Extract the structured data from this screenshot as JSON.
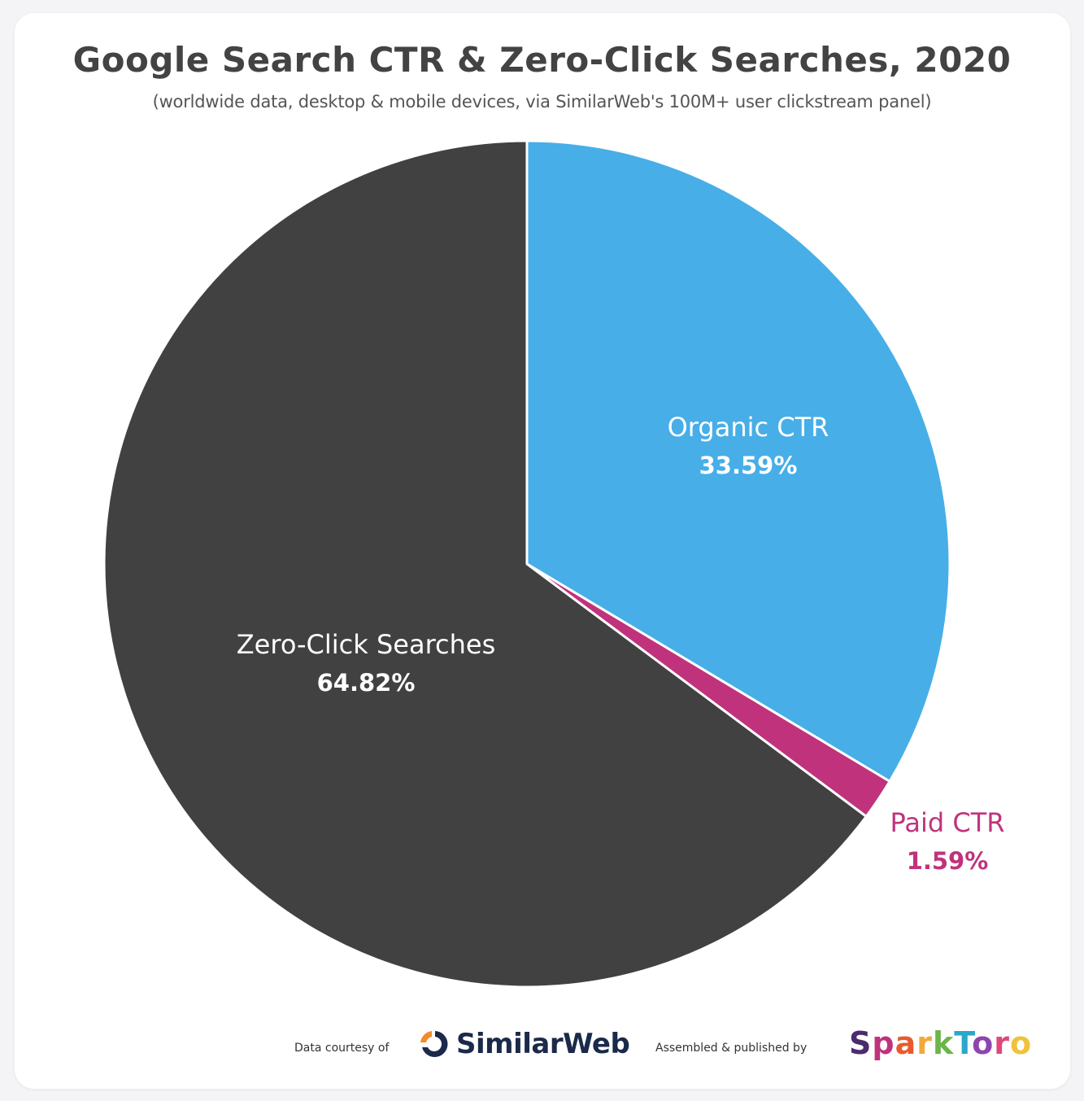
{
  "header": {
    "title": "Google Search CTR & Zero-Click Searches, 2020",
    "subtitle": "(worldwide data, desktop & mobile devices, via SimilarWeb's 100M+ user clickstream panel)"
  },
  "chart_data": {
    "type": "pie",
    "title": "Google Search CTR & Zero-Click Searches, 2020",
    "subtitle": "(worldwide data, desktop & mobile devices, via SimilarWeb's 100M+ user clickstream panel)",
    "start_angle": "12 o'clock",
    "direction": "clockwise",
    "slices": [
      {
        "label": "Organic CTR",
        "value": 33.59,
        "value_label": "33.59%",
        "color": "#47aee8",
        "label_color": "#ffffff"
      },
      {
        "label": "Paid CTR",
        "value": 1.59,
        "value_label": "1.59%",
        "color": "#c0337c",
        "label_color": "#c0337c"
      },
      {
        "label": "Zero-Click Searches",
        "value": 64.82,
        "value_label": "64.82%",
        "color": "#414141",
        "label_color": "#ffffff"
      }
    ]
  },
  "footer": {
    "data_courtesy": "Data courtesy of",
    "similarweb_logo_text": "SimilarWeb",
    "assembled": "Assembled & published by",
    "sparktoro_logo_text": "SparkToro",
    "sparktoro_colors": [
      "#4a2c6e",
      "#c0337c",
      "#e85b2c",
      "#f2a93b",
      "#6bb54a",
      "#2aa7c9",
      "#8e44ad",
      "#e0487b",
      "#f0c23b"
    ]
  }
}
